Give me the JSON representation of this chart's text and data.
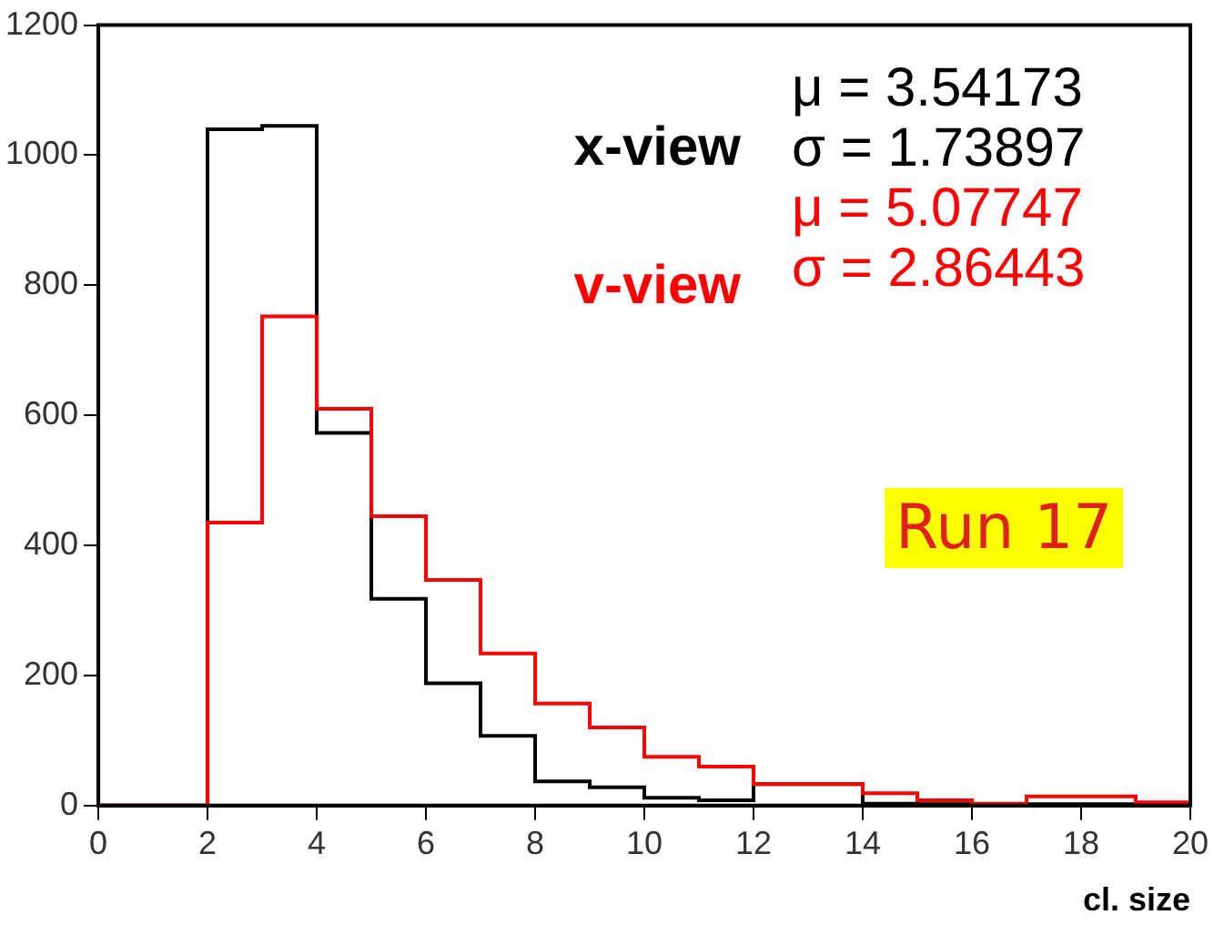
{
  "chart_data": {
    "type": "histogram",
    "xlabel": "cl. size",
    "bins": [
      0,
      1,
      2,
      3,
      4,
      5,
      6,
      7,
      8,
      9,
      10,
      11,
      12,
      13,
      14,
      15,
      16,
      17,
      18,
      19,
      20
    ],
    "series": [
      {
        "name": "x-view",
        "color": "#000000",
        "values": [
          0,
          0,
          1040,
          1045,
          573,
          318,
          188,
          107,
          37,
          28,
          12,
          8,
          33,
          33,
          3,
          2,
          2,
          2,
          2,
          2
        ]
      },
      {
        "name": "v-view",
        "color": "#ff0000",
        "values": [
          0,
          0,
          435,
          752,
          610,
          445,
          347,
          234,
          157,
          120,
          75,
          60,
          33,
          33,
          19,
          8,
          3,
          14,
          14,
          5
        ]
      }
    ],
    "xlim": [
      0,
      20
    ],
    "xticks": [
      0,
      2,
      4,
      6,
      8,
      10,
      12,
      14,
      16,
      18,
      20
    ],
    "ylim": [
      0,
      1200
    ],
    "yticks": [
      0,
      200,
      400,
      600,
      800,
      1000,
      1200
    ],
    "grid": false,
    "legend": false,
    "annotations": [
      "μ = 3.54173",
      "σ = 1.73897",
      "μ = 5.07747",
      "σ = 2.86443",
      "Run 17"
    ]
  }
}
